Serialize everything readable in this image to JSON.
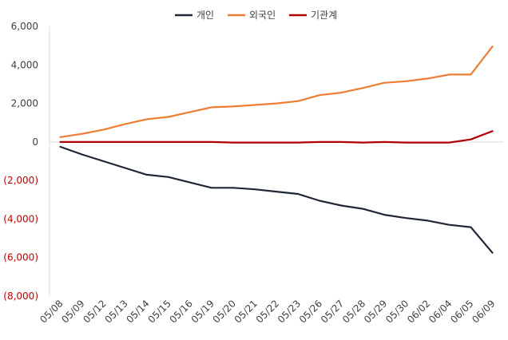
{
  "chart_data": {
    "type": "line",
    "categories": [
      "05/08",
      "05/09",
      "05/12",
      "05/13",
      "05/14",
      "05/15",
      "05/16",
      "05/19",
      "05/20",
      "05/21",
      "05/22",
      "05/23",
      "05/26",
      "05/27",
      "05/28",
      "05/29",
      "05/30",
      "06/02",
      "06/04",
      "06/05",
      "06/09"
    ],
    "ylim": [
      -8000,
      6000
    ],
    "yticks": [
      6000,
      4000,
      2000,
      0,
      -2000,
      -4000,
      -6000,
      -8000
    ],
    "ytick_labels": [
      "6,000",
      "4,000",
      "2,000",
      "0",
      "(2,000)",
      "(4,000)",
      "(6,000)",
      "(8,000)"
    ],
    "negative_label_color": "#c00000",
    "positive_label_color": "#404040",
    "grid": false,
    "legend_position": "top",
    "series": [
      {
        "name": "개인",
        "color": "#1f2736",
        "values": [
          -250,
          -650,
          -1000,
          -1350,
          -1700,
          -1820,
          -2100,
          -2380,
          -2380,
          -2460,
          -2580,
          -2700,
          -3050,
          -3300,
          -3470,
          -3780,
          -3950,
          -4080,
          -4300,
          -4420,
          -5750
        ]
      },
      {
        "name": "외국인",
        "color": "#ed7d31",
        "values": [
          250,
          420,
          640,
          930,
          1180,
          1300,
          1550,
          1800,
          1840,
          1920,
          2000,
          2120,
          2430,
          2560,
          2800,
          3070,
          3150,
          3290,
          3500,
          3500,
          4950
        ]
      },
      {
        "name": "기관계",
        "color": "#b00000",
        "values": [
          0,
          0,
          0,
          0,
          0,
          0,
          0,
          0,
          -30,
          -30,
          -30,
          -30,
          0,
          0,
          -30,
          0,
          -30,
          -30,
          -30,
          130,
          560
        ]
      }
    ]
  }
}
